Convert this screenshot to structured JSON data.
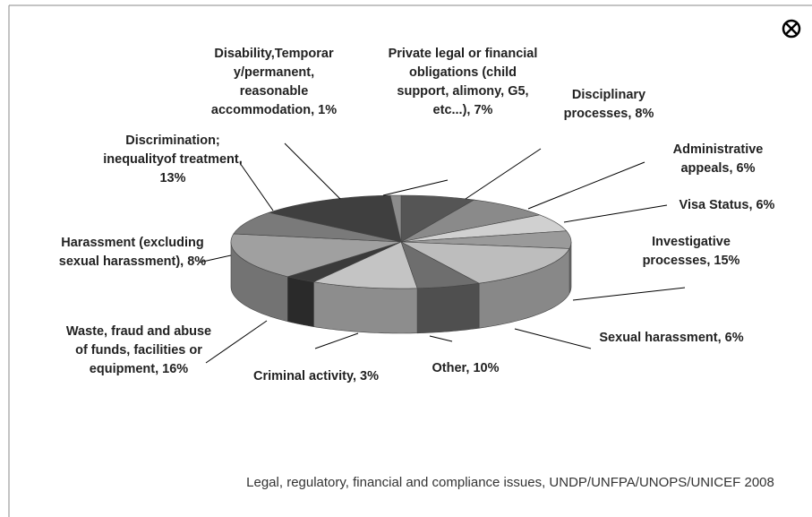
{
  "chart_data": {
    "type": "pie3d",
    "title": "Legal, regulatory, financial and compliance issues, UNDP/UNFPA/UNOPS/UNICEF 2008",
    "values": [
      7,
      8,
      6,
      6,
      15,
      6,
      10,
      3,
      16,
      8,
      13,
      1
    ],
    "value_labels": [
      "Private legal or financial obligations (child support, alimony, G5, etc...), 7%",
      "Disciplinary processes, 8%",
      "Administrative appeals, 6%",
      "Visa Status, 6%",
      "Investigative processes, 15%",
      "Sexual harassment, 6%",
      "Other, 10%",
      "Criminal activity, 3%",
      "Waste, fraud and abuse of funds, facilities or equipment, 16%",
      "Harassment (excluding sexual harassment), 8%",
      "Discrimination; inequalityof treatment, 13%",
      "Disability,Temporar y/permanent, reasonable accommodation, 1%"
    ],
    "colors": [
      "#555555",
      "#8a8a8a",
      "#d0d0d0",
      "#9a9a9a",
      "#bdbdbd",
      "#6e6e6e",
      "#c4c4c4",
      "#3a3a3a",
      "#a0a0a0",
      "#7a7a7a",
      "#3f3f3f",
      "#8c8c8c"
    ]
  }
}
